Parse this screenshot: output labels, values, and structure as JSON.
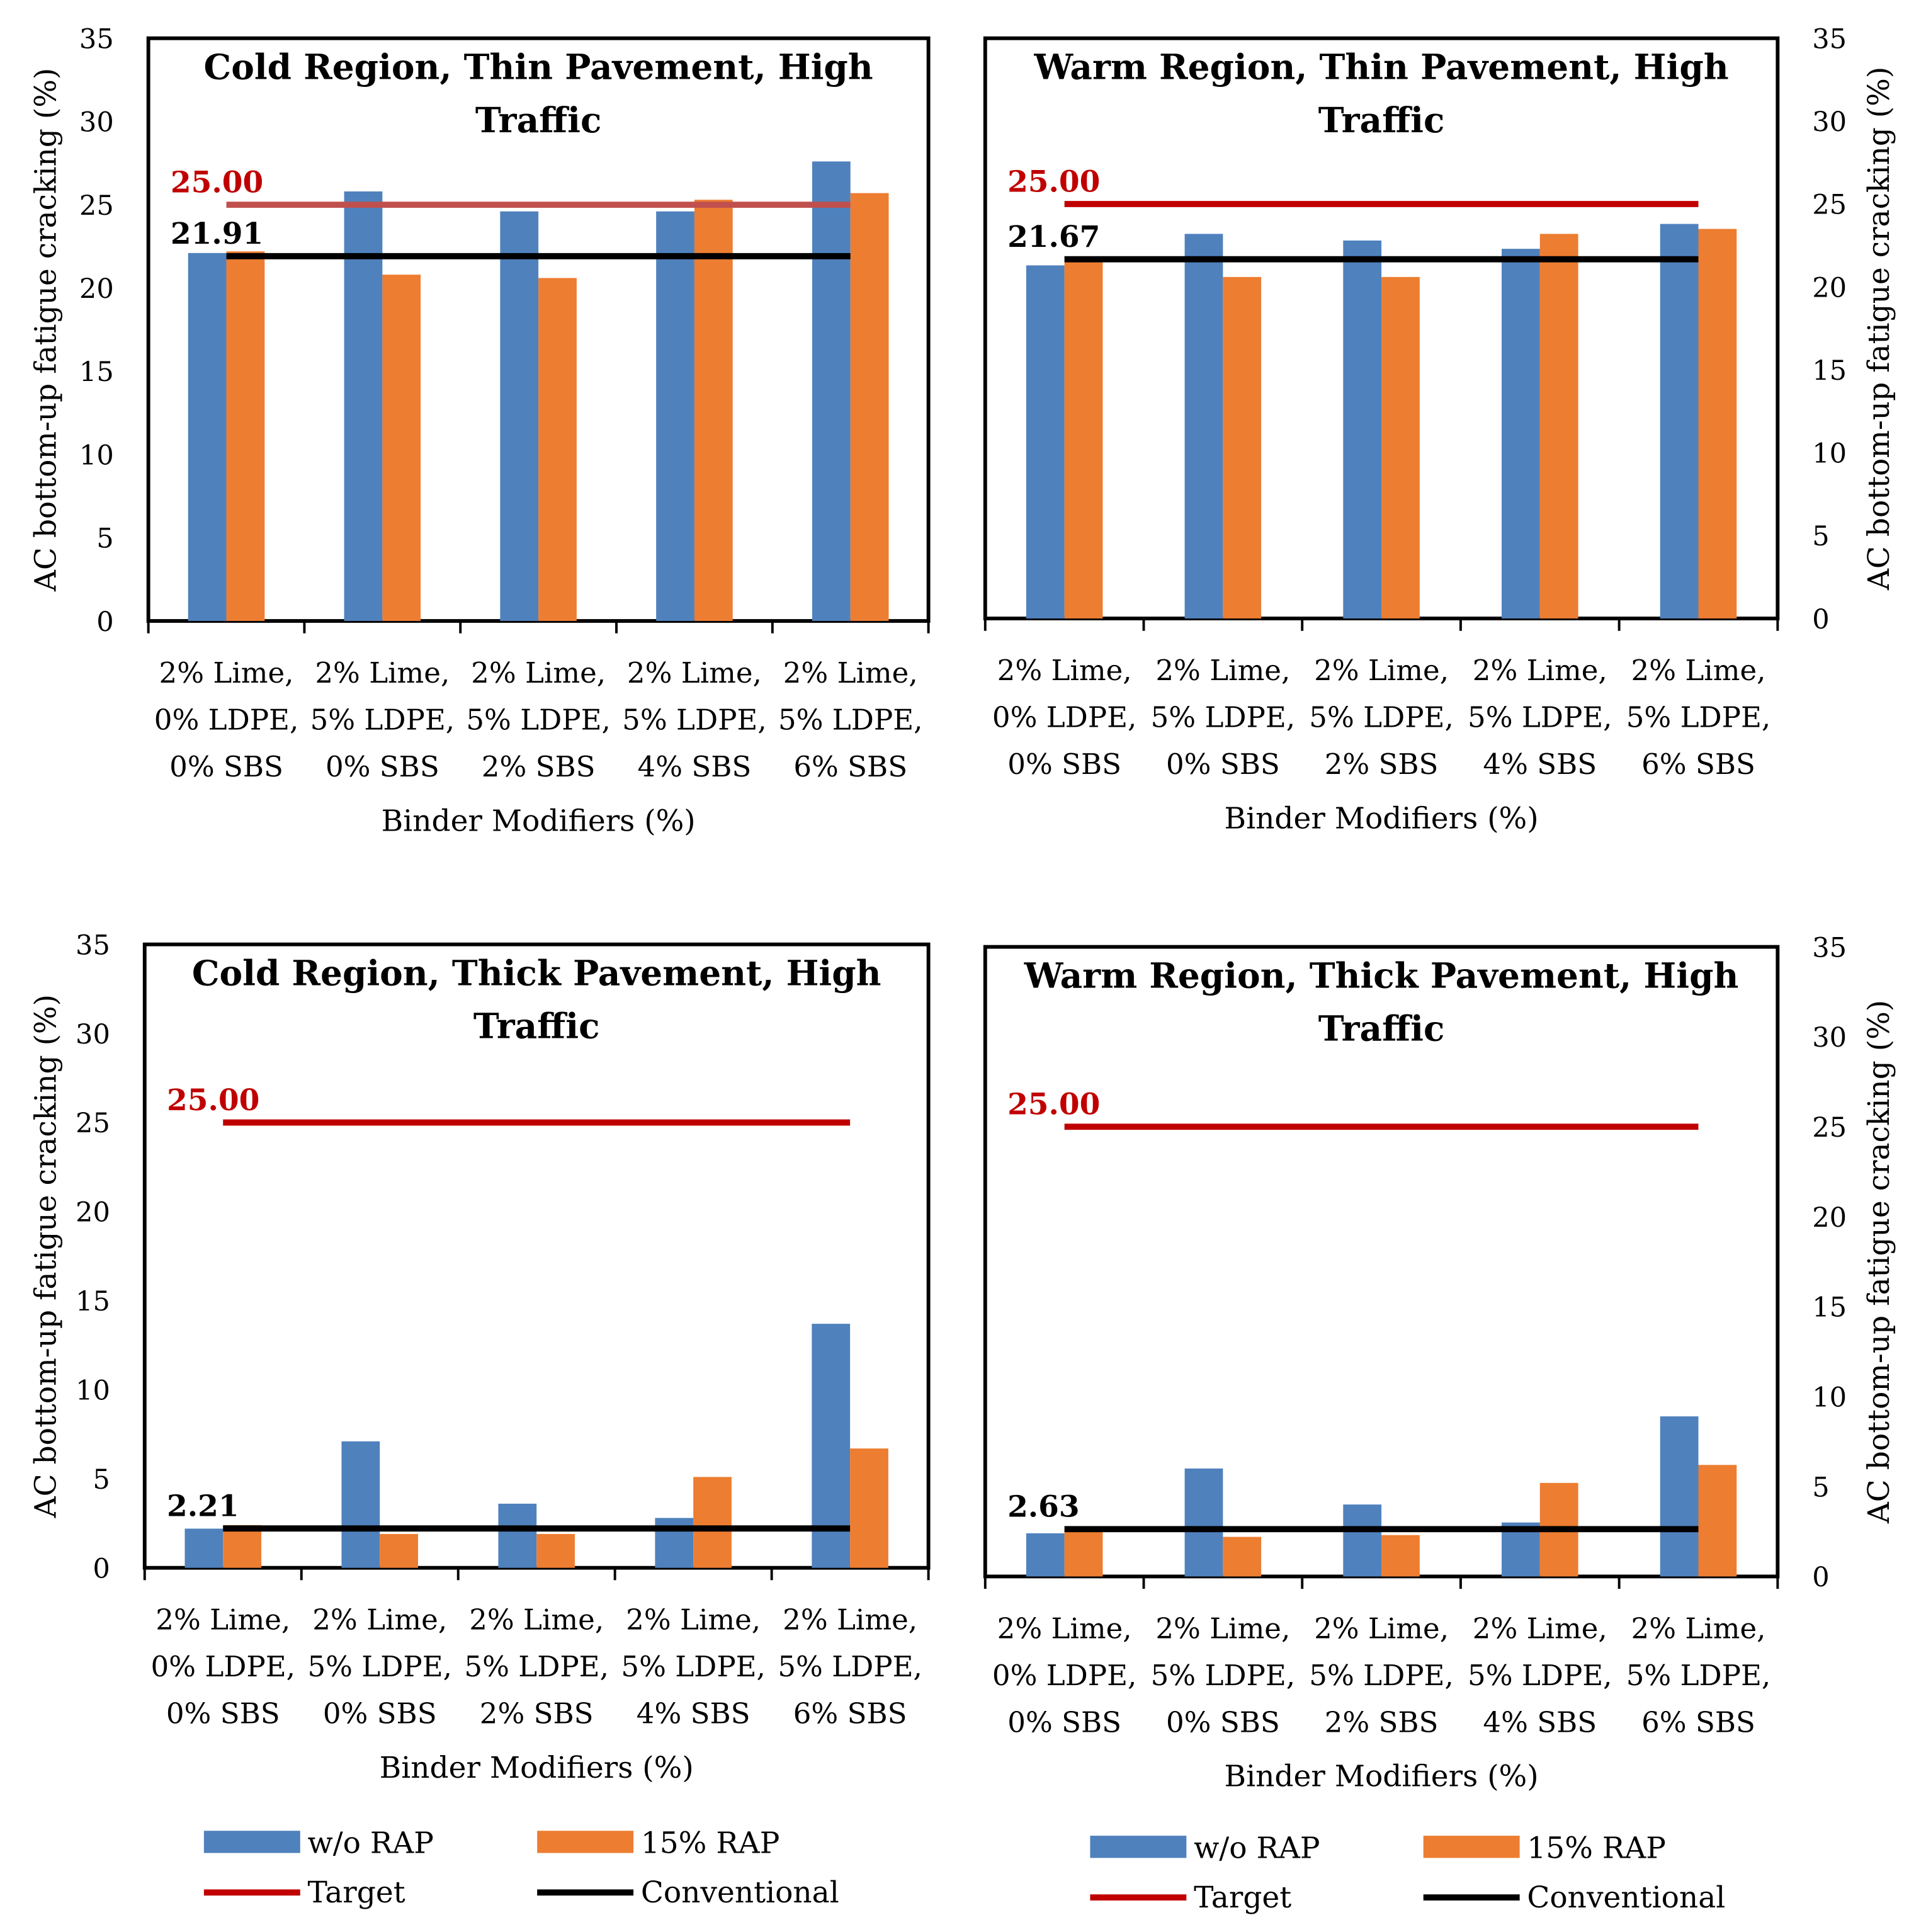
{
  "chart_data": [
    {
      "type": "bar",
      "title": "Cold Region, Thin Pavement, High Traffic",
      "title_lines": [
        "Cold Region, Thin Pavement, High",
        "Traffic"
      ],
      "xlabel": "Binder Modifiers (%)",
      "ylabel": "AC bottom-up fatigue cracking (%)",
      "ylim": [
        0,
        35
      ],
      "yticks": [
        0,
        5,
        10,
        15,
        20,
        25,
        30,
        35
      ],
      "axis_side": "left",
      "categories": [
        [
          "2% Lime,",
          "0% LDPE,",
          "0% SBS"
        ],
        [
          "2% Lime,",
          "5% LDPE,",
          "0% SBS"
        ],
        [
          "2% Lime,",
          "5% LDPE,",
          "2% SBS"
        ],
        [
          "2% Lime,",
          "5% LDPE,",
          "4% SBS"
        ],
        [
          "2% Lime,",
          "5% LDPE,",
          "6% SBS"
        ]
      ],
      "series": [
        {
          "name": "w/o RAP",
          "values": [
            22.1,
            25.8,
            24.6,
            24.6,
            27.6
          ]
        },
        {
          "name": "15% RAP",
          "values": [
            22.2,
            20.8,
            20.6,
            25.3,
            25.7
          ]
        }
      ],
      "target": 25.0,
      "target_label": "25.00",
      "conventional": 21.91,
      "conventional_label": "21.91"
    },
    {
      "type": "bar",
      "title": "Warm Region, Thin Pavement, High Traffic",
      "title_lines": [
        "Warm Region, Thin Pavement, High",
        "Traffic"
      ],
      "xlabel": "Binder Modifiers (%)",
      "ylabel": "AC bottom-up fatigue cracking (%)",
      "ylim": [
        0,
        35
      ],
      "yticks": [
        0,
        5,
        10,
        15,
        20,
        25,
        30,
        35
      ],
      "axis_side": "right",
      "categories": [
        [
          "2% Lime,",
          "0% LDPE,",
          "0% SBS"
        ],
        [
          "2% Lime,",
          "5% LDPE,",
          "0% SBS"
        ],
        [
          "2% Lime,",
          "5% LDPE,",
          "2% SBS"
        ],
        [
          "2% Lime,",
          "5% LDPE,",
          "4% SBS"
        ],
        [
          "2% Lime,",
          "5% LDPE,",
          "6% SBS"
        ]
      ],
      "series": [
        {
          "name": "w/o RAP",
          "values": [
            21.3,
            23.2,
            22.8,
            22.3,
            23.8
          ]
        },
        {
          "name": "15% RAP",
          "values": [
            21.6,
            20.6,
            20.6,
            23.2,
            23.5
          ]
        }
      ],
      "target": 25.0,
      "target_label": "25.00",
      "conventional": 21.67,
      "conventional_label": "21.67"
    },
    {
      "type": "bar",
      "title": "Cold Region, Thick Pavement, High Traffic",
      "title_lines": [
        "Cold Region, Thick Pavement, High",
        "Traffic"
      ],
      "xlabel": "Binder Modifiers (%)",
      "ylabel": "AC bottom-up fatigue cracking (%)",
      "ylim": [
        0,
        35
      ],
      "yticks": [
        0,
        5,
        10,
        15,
        20,
        25,
        30,
        35
      ],
      "axis_side": "left",
      "categories": [
        [
          "2% Lime,",
          "0% LDPE,",
          "0% SBS"
        ],
        [
          "2% Lime,",
          "5% LDPE,",
          "0% SBS"
        ],
        [
          "2% Lime,",
          "5% LDPE,",
          "2% SBS"
        ],
        [
          "2% Lime,",
          "5% LDPE,",
          "4% SBS"
        ],
        [
          "2% Lime,",
          "5% LDPE,",
          "6% SBS"
        ]
      ],
      "series": [
        {
          "name": "w/o RAP",
          "values": [
            2.2,
            7.1,
            3.6,
            2.8,
            13.7
          ]
        },
        {
          "name": "15% RAP",
          "values": [
            2.4,
            1.9,
            1.9,
            5.1,
            6.7
          ]
        }
      ],
      "target": 25.0,
      "target_label": "25.00",
      "conventional": 2.21,
      "conventional_label": "2.21"
    },
    {
      "type": "bar",
      "title": "Warm Region, Thick Pavement, High Traffic",
      "title_lines": [
        "Warm Region, Thick Pavement, High",
        "Traffic"
      ],
      "xlabel": "Binder Modifiers (%)",
      "ylabel": "AC bottom-up fatigue cracking (%)",
      "ylim": [
        0,
        35
      ],
      "yticks": [
        0,
        5,
        10,
        15,
        20,
        25,
        30,
        35
      ],
      "axis_side": "right",
      "categories": [
        [
          "2% Lime,",
          "0% LDPE,",
          "0% SBS"
        ],
        [
          "2% Lime,",
          "5% LDPE,",
          "0% SBS"
        ],
        [
          "2% Lime,",
          "5% LDPE,",
          "2% SBS"
        ],
        [
          "2% Lime,",
          "5% LDPE,",
          "4% SBS"
        ],
        [
          "2% Lime,",
          "5% LDPE,",
          "6% SBS"
        ]
      ],
      "series": [
        {
          "name": "w/o RAP",
          "values": [
            2.4,
            6.0,
            4.0,
            3.0,
            8.9
          ]
        },
        {
          "name": "15% RAP",
          "values": [
            2.7,
            2.2,
            2.3,
            5.2,
            6.2
          ]
        }
      ],
      "target": 25.0,
      "target_label": "25.00",
      "conventional": 2.63,
      "conventional_label": "2.63"
    }
  ],
  "legend": {
    "items": [
      "w/o RAP",
      "15% RAP",
      "Target",
      "Conventional"
    ]
  },
  "colors": {
    "w/o RAP": "#4F81BD",
    "15% RAP": "#ED7D31",
    "Target": "#C00000",
    "Conventional": "#000000"
  }
}
